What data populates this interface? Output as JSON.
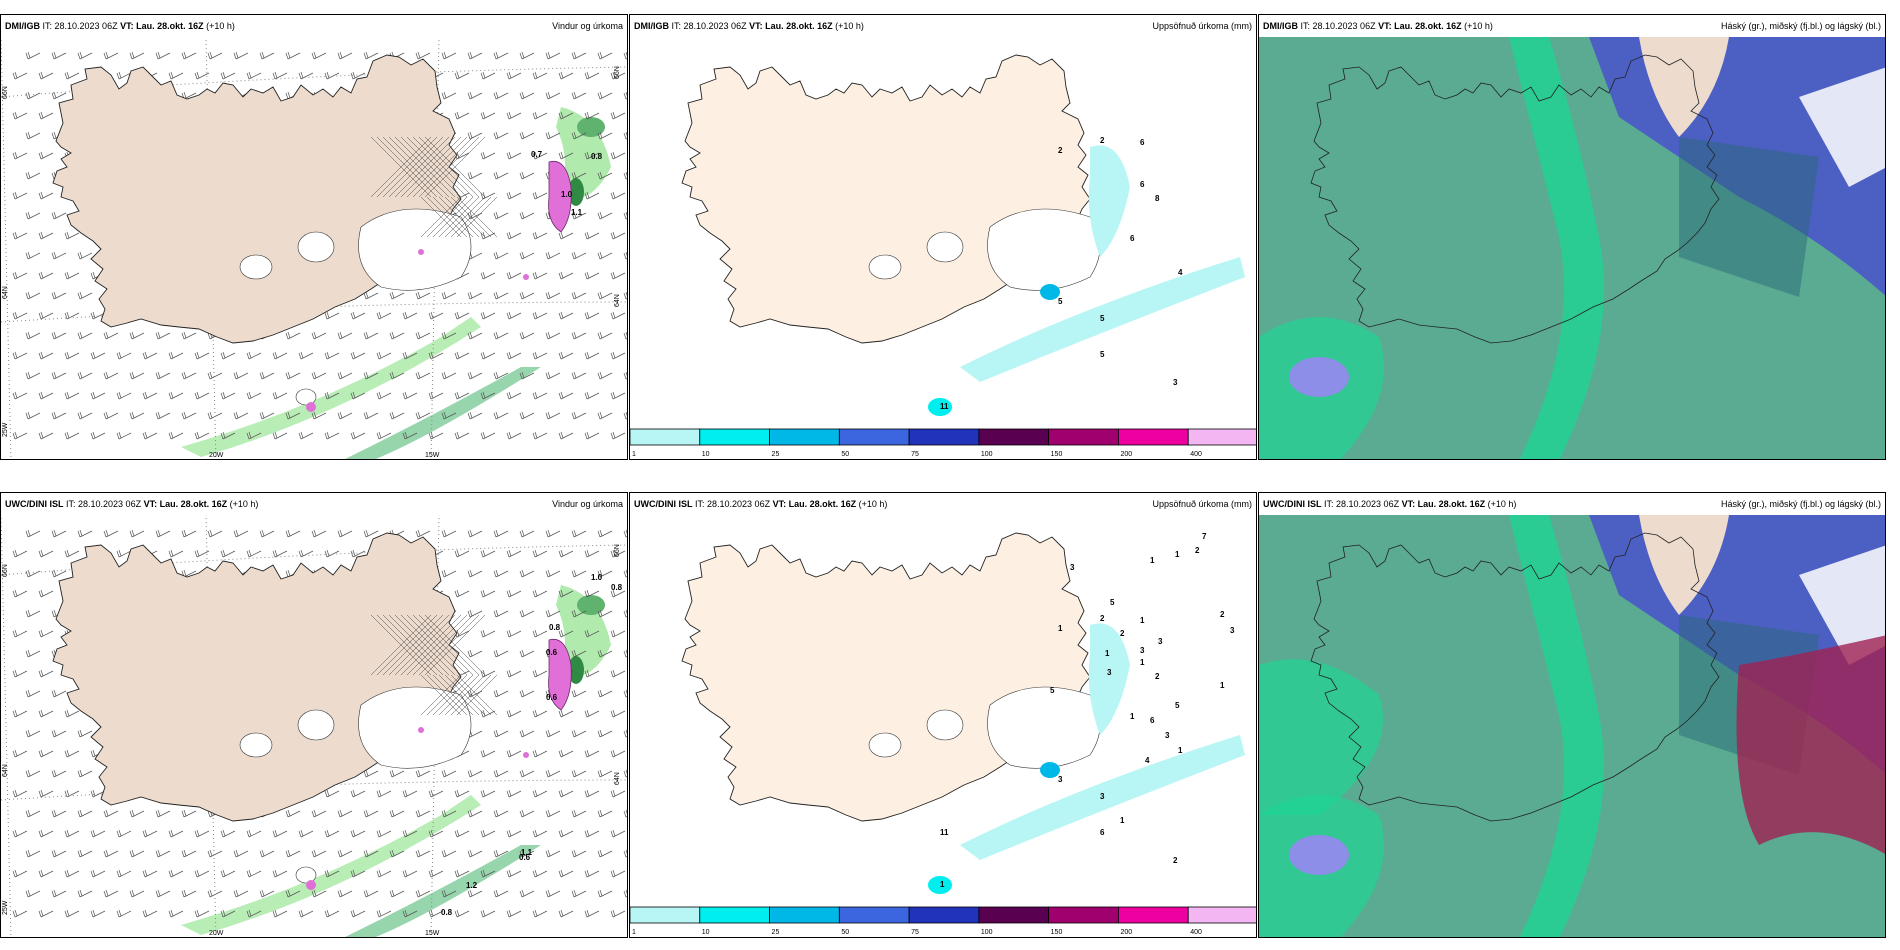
{
  "panels": [
    {
      "source": "DMI/IGB",
      "it": "IT: 28.10.2023 06Z",
      "vt": "VT: Lau. 28.okt. 16Z",
      "lead": "(+10 h)",
      "title": "Vindur og úrkoma"
    },
    {
      "source": "DMI/IGB",
      "it": "IT: 28.10.2023 06Z",
      "vt": "VT: Lau. 28.okt. 16Z",
      "lead": "(+10 h)",
      "title": "Uppsöfnuð úrkoma (mm)"
    },
    {
      "source": "DMI/IGB",
      "it": "IT: 28.10.2023 06Z",
      "vt": "VT: Lau. 28.okt. 16Z",
      "lead": "(+10 h)",
      "title": "Háský (gr.), miðský (fj.bl.) og lágský (bl.)"
    },
    {
      "source": "UWC/DINI ISL",
      "it": "IT: 28.10.2023 06Z",
      "vt": "VT: Lau. 28.okt. 16Z",
      "lead": "(+10 h)",
      "title": "Vindur og úrkoma"
    },
    {
      "source": "UWC/DINI ISL",
      "it": "IT: 28.10.2023 06Z",
      "vt": "VT: Lau. 28.okt. 16Z",
      "lead": "(+10 h)",
      "title": "Uppsöfnuð úrkoma (mm)"
    },
    {
      "source": "UWC/DINI ISL",
      "it": "IT: 28.10.2023 06Z",
      "vt": "VT: Lau. 28.okt. 16Z",
      "lead": "(+10 h)",
      "title": "Háský (gr.), miðský (fj.bl.) og lágský (bl.)"
    }
  ],
  "grid_labels": {
    "lat66": "66N",
    "lat64": "64N",
    "lon25": "25W",
    "lon20": "20W",
    "lon15": "15W"
  },
  "legend": {
    "ticks": [
      "1",
      "10",
      "25",
      "50",
      "75",
      "100",
      "150",
      "200",
      "400"
    ],
    "colors": [
      "#b8f5f5",
      "#00eeee",
      "#00b8e8",
      "#3b66e0",
      "#2233bb",
      "#5a0050",
      "#a0006e",
      "#ee00a0",
      "#f3b6f3"
    ]
  },
  "wind_precip_labels_dmi": [
    "0.8",
    "0.7",
    "1.0",
    "1.1"
  ],
  "wind_precip_labels_uwc": [
    "1.0",
    "0.8",
    "0.6",
    "0.8",
    "0.6",
    "0.6",
    "1.1",
    "1.2",
    "0.8",
    "0.8"
  ],
  "accum_labels_dmi": [
    "2",
    "6",
    "2",
    "6",
    "8",
    "6",
    "5",
    "4",
    "5",
    "5",
    "3",
    "11"
  ],
  "accum_labels_uwc": [
    "2",
    "1",
    "1",
    "1",
    "2",
    "1",
    "3",
    "1",
    "3",
    "6",
    "2",
    "1",
    "7",
    "1",
    "1",
    "2",
    "3",
    "5",
    "2",
    "2",
    "3",
    "1",
    "3",
    "3",
    "5",
    "3",
    "3",
    "6",
    "4",
    "1",
    "5",
    "1",
    "11"
  ],
  "colors": {
    "land": "#eddccd",
    "land_light": "#fdf0e2",
    "cloud_mid": "#5aab92",
    "cloud_low": "#3a5db5",
    "cloud_high": "#1fd494",
    "precip_green": "#a8e8a4"
  }
}
